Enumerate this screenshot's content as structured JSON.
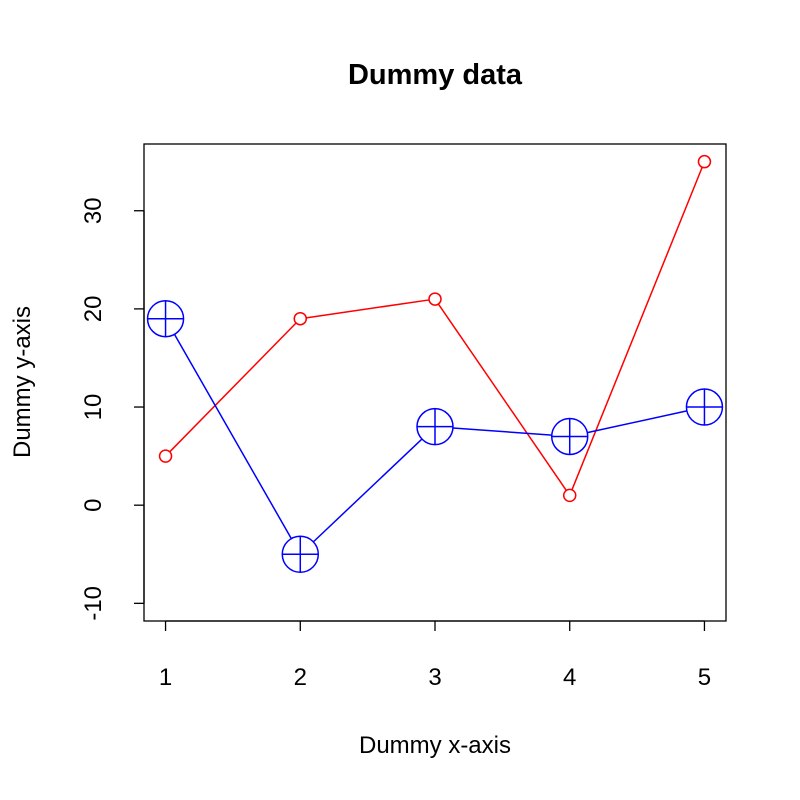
{
  "chart_data": {
    "type": "line",
    "title": "Dummy data",
    "xlabel": "Dummy x-axis",
    "ylabel": "Dummy y-axis",
    "x": [
      1,
      2,
      3,
      4,
      5
    ],
    "xlim": [
      0.84,
      5.16
    ],
    "ylim": [
      -11.8,
      36.8
    ],
    "x_ticks": [
      "1",
      "2",
      "3",
      "4",
      "5"
    ],
    "x_tick_values": [
      1,
      2,
      3,
      4,
      5
    ],
    "y_ticks": [
      "-10",
      "0",
      "10",
      "20",
      "30"
    ],
    "y_tick_values": [
      -10,
      0,
      10,
      20,
      30
    ],
    "grid": false,
    "series": [
      {
        "values": [
          5,
          19,
          21,
          1,
          35
        ],
        "color": "#ff0000",
        "marker": "open-circle"
      },
      {
        "values": [
          19,
          -5,
          8,
          7,
          10
        ],
        "color": "#0000ff",
        "marker": "circle-plus"
      }
    ]
  }
}
